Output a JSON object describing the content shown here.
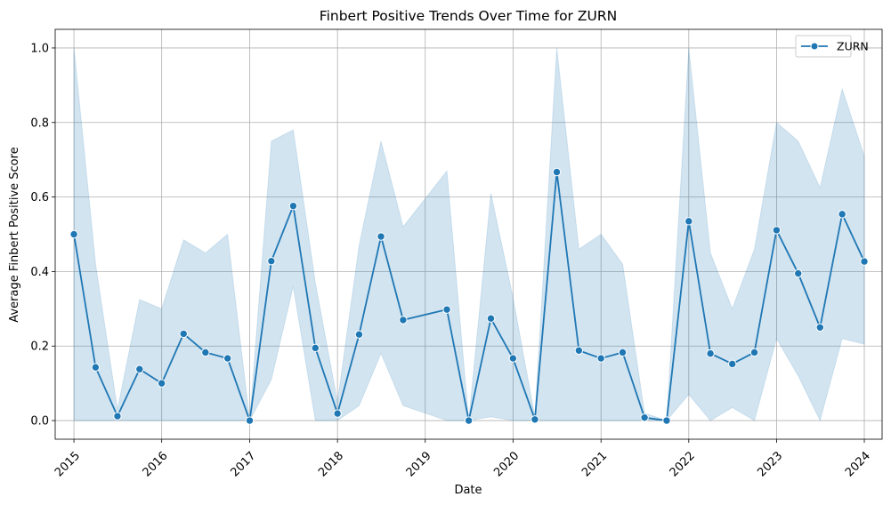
{
  "chart_data": {
    "type": "line",
    "title": "Finbert Positive Trends Over Time for ZURN",
    "xlabel": "Date",
    "ylabel": "Average Finbert Positive Score",
    "x_tick_labels": [
      "2015",
      "2016",
      "2017",
      "2018",
      "2019",
      "2020",
      "2021",
      "2022",
      "2023",
      "2024"
    ],
    "y_tick_labels": [
      "0.0",
      "0.2",
      "0.4",
      "0.6",
      "0.8",
      "1.0"
    ],
    "xlim": [
      "2014-10-15",
      "2024-03-15"
    ],
    "ylim": [
      -0.05,
      1.05
    ],
    "grid": true,
    "legend_position": "top-right",
    "colors": {
      "line": "#1f77b4",
      "band": "#1f77b4",
      "grid": "#b0b0b0"
    },
    "series": [
      {
        "name": "ZURN",
        "x": [
          "2015-01-01",
          "2015-04-01",
          "2015-07-01",
          "2015-10-01",
          "2016-01-01",
          "2016-04-01",
          "2016-07-01",
          "2016-10-01",
          "2017-01-01",
          "2017-04-01",
          "2017-07-01",
          "2017-10-01",
          "2018-01-01",
          "2018-04-01",
          "2018-07-01",
          "2018-10-01",
          "2019-04-01",
          "2019-07-01",
          "2019-10-01",
          "2020-01-01",
          "2020-04-01",
          "2020-07-01",
          "2020-10-01",
          "2021-01-01",
          "2021-04-01",
          "2021-07-01",
          "2021-10-01",
          "2022-01-01",
          "2022-04-01",
          "2022-07-01",
          "2022-10-01",
          "2023-01-01",
          "2023-04-01",
          "2023-07-01",
          "2023-10-01",
          "2024-01-01"
        ],
        "values": [
          0.5,
          0.143,
          0.012,
          0.138,
          0.1,
          0.233,
          0.183,
          0.167,
          0.0,
          0.428,
          0.576,
          0.195,
          0.019,
          0.231,
          0.494,
          0.27,
          0.298,
          0.0,
          0.274,
          0.167,
          0.003,
          0.667,
          0.188,
          0.167,
          0.183,
          0.008,
          0.0,
          0.535,
          0.18,
          0.152,
          0.183,
          0.511,
          0.395,
          0.25,
          0.554,
          0.427
        ],
        "ci_lower": [
          0.0,
          0.0,
          0.0,
          0.0,
          0.0,
          0.0,
          0.0,
          0.0,
          0.0,
          0.11,
          0.36,
          0.0,
          0.0,
          0.04,
          0.18,
          0.04,
          0.0,
          0.0,
          0.01,
          0.0,
          0.0,
          0.0,
          0.0,
          0.0,
          0.0,
          0.0,
          0.0,
          0.07,
          0.0,
          0.035,
          0.0,
          0.22,
          0.12,
          0.0,
          0.22,
          0.205
        ],
        "ci_upper": [
          1.0,
          0.42,
          0.03,
          0.325,
          0.3,
          0.485,
          0.45,
          0.5,
          0.0,
          0.75,
          0.78,
          0.37,
          0.05,
          0.47,
          0.75,
          0.52,
          0.67,
          0.0,
          0.61,
          0.33,
          0.01,
          1.0,
          0.46,
          0.5,
          0.42,
          0.02,
          0.0,
          1.0,
          0.45,
          0.3,
          0.46,
          0.8,
          0.75,
          0.625,
          0.89,
          0.71
        ]
      }
    ]
  }
}
